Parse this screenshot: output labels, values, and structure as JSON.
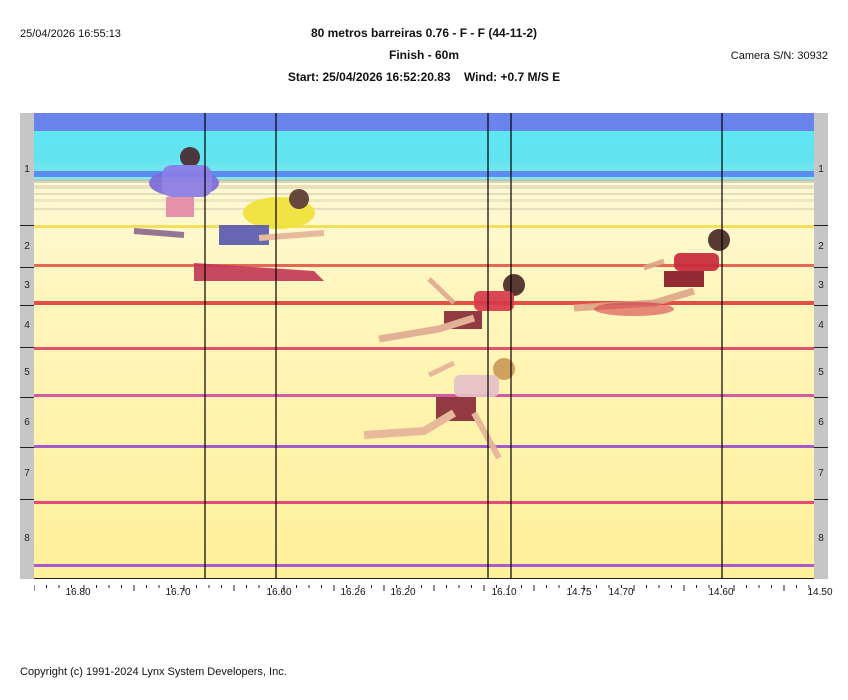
{
  "header": {
    "datetime": "25/04/2026 16:55:13",
    "event_title": "80 metros barreiras 0.76 - F - F (44-11-2)",
    "finish_label": "Finish - 60m",
    "start_text": "Start: 25/04/2026 16:52:20.83",
    "wind_text": "Wind: +0.7 M/S E",
    "camera_serial": "Camera S/N: 30932"
  },
  "lanes": [
    "1",
    "2",
    "3",
    "4",
    "5",
    "6",
    "7",
    "8"
  ],
  "time_axis": {
    "labels": [
      "16.80",
      "16.70",
      "16.60",
      "16.26",
      "16.20",
      "16.10",
      "14.75",
      "14.70",
      "14.60",
      "14.50"
    ]
  },
  "footer": {
    "copyright": "Copyright (c) 1991-2024 Lynx System Developers, Inc."
  },
  "colors": {
    "sky": "#5ee8f2",
    "track": "#fff3a8",
    "lane_line_red": "#e0406a",
    "lane_line_purple": "#9a4ad0",
    "lane_bar": "#c6c6c6",
    "athlete_red": "#c8283a",
    "athlete_yellow": "#f1e23a",
    "athlete_blue": "#7b6cd9"
  }
}
